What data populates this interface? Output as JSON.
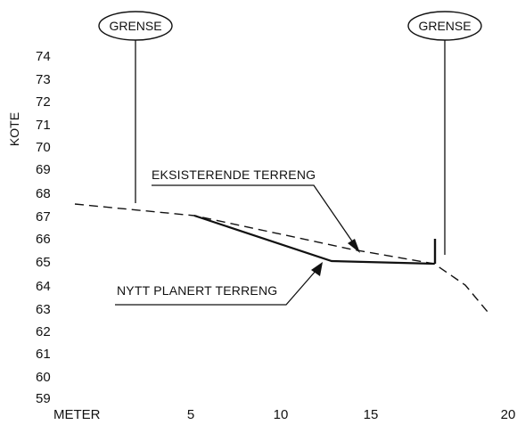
{
  "diagram": {
    "y_axis_label": "KOTE",
    "x_axis_label": "METER",
    "y_ticks": [
      "74",
      "73",
      "72",
      "71",
      "70",
      "69",
      "68",
      "67",
      "66",
      "65",
      "64",
      "63",
      "62",
      "61",
      "60",
      "59"
    ],
    "x_ticks": [
      "5",
      "10",
      "15",
      "20"
    ],
    "boundary_label_left": "GRENSE",
    "boundary_label_right": "GRENSE",
    "existing_terrain_label": "EKSISTERENDE TERRENG",
    "new_terrain_label": "NYTT PLANERT TERRENG"
  },
  "chart_data": {
    "type": "line",
    "xlabel": "METER",
    "ylabel": "KOTE",
    "xlim": [
      0,
      20
    ],
    "ylim": [
      59,
      74
    ],
    "series": [
      {
        "name": "EKSISTERENDE TERRENG",
        "style": "dashed",
        "x": [
          0,
          6.2,
          12,
          17,
          18,
          19.3
        ],
        "y": [
          67.6,
          67.0,
          65.8,
          64.9,
          64.1,
          62.9
        ]
      },
      {
        "name": "NYTT PLANERT TERRENG",
        "style": "solid",
        "x": [
          6.2,
          12.5,
          17
        ],
        "y": [
          67.0,
          65.0,
          65.0
        ]
      }
    ],
    "boundaries_x": [
      3.5,
      17.3
    ],
    "colors": {
      "ink": "#111111",
      "background": "#ffffff"
    }
  }
}
